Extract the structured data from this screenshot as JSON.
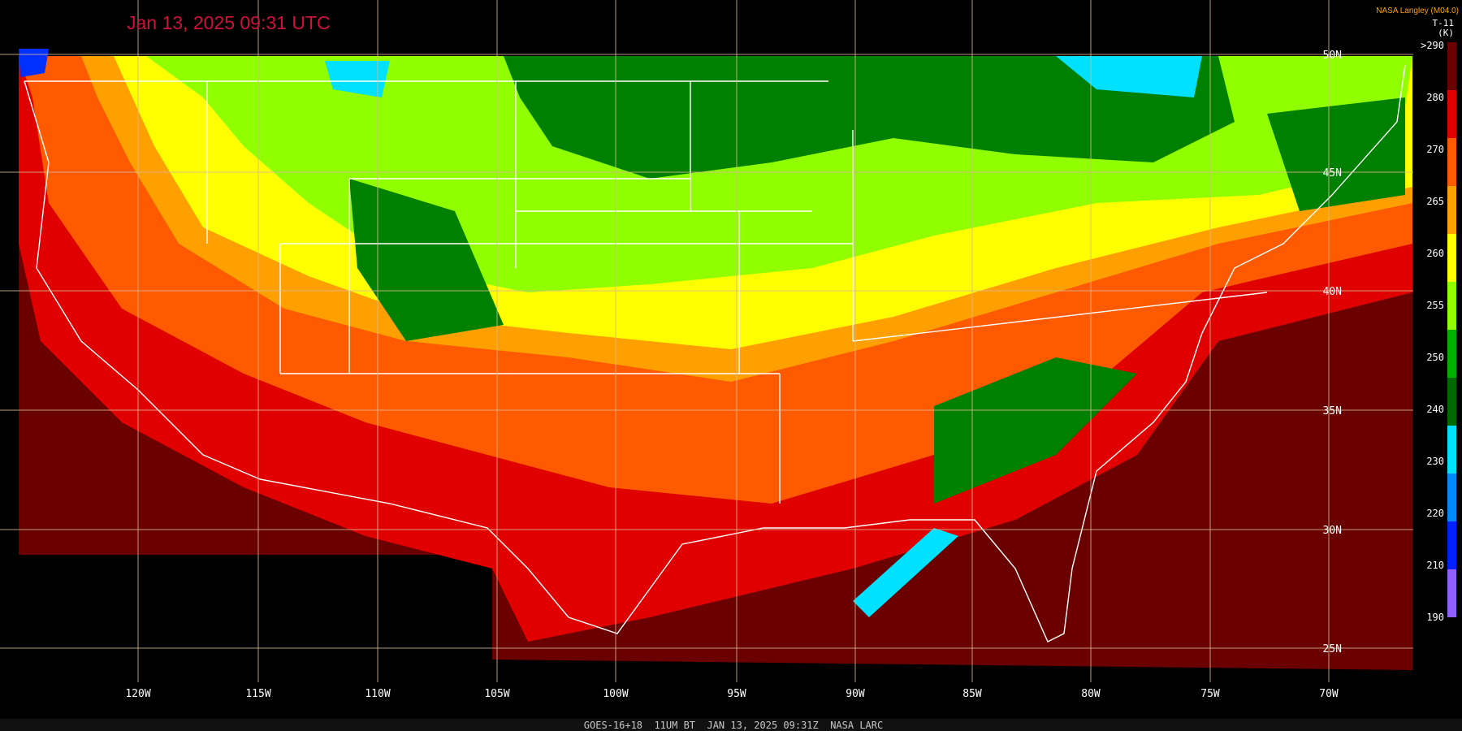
{
  "header": {
    "timestamp": "Jan 13, 2025 09:31 UTC",
    "credit": "NASA Langley (M04.0)"
  },
  "colorbar": {
    "title": "T-11",
    "unit": "(K)",
    "stops": [
      {
        "label": ">290",
        "color": "#6a0000"
      },
      {
        "label": "280",
        "color": "#e00000"
      },
      {
        "label": "270",
        "color": "#ff5a00"
      },
      {
        "label": "265",
        "color": "#ffa000"
      },
      {
        "label": "260",
        "color": "#ffff00"
      },
      {
        "label": "255",
        "color": "#90ff00"
      },
      {
        "label": "250",
        "color": "#00b000"
      },
      {
        "label": "240",
        "color": "#006a00"
      },
      {
        "label": "230",
        "color": "#00e0ff"
      },
      {
        "label": "220",
        "color": "#0088ff"
      },
      {
        "label": "210",
        "color": "#0020ff"
      },
      {
        "label": "190",
        "color": "#9060ff"
      }
    ]
  },
  "latitude_labels": [
    "50N",
    "45N",
    "40N",
    "35N",
    "30N",
    "25N"
  ],
  "longitude_labels": [
    "120W",
    "115W",
    "110W",
    "105W",
    "100W",
    "95W",
    "90W",
    "85W",
    "80W",
    "75W",
    "70W"
  ],
  "footer": "GOES-16+18  11UM BT  JAN 13, 2025 09:31Z  NASA LARC"
}
